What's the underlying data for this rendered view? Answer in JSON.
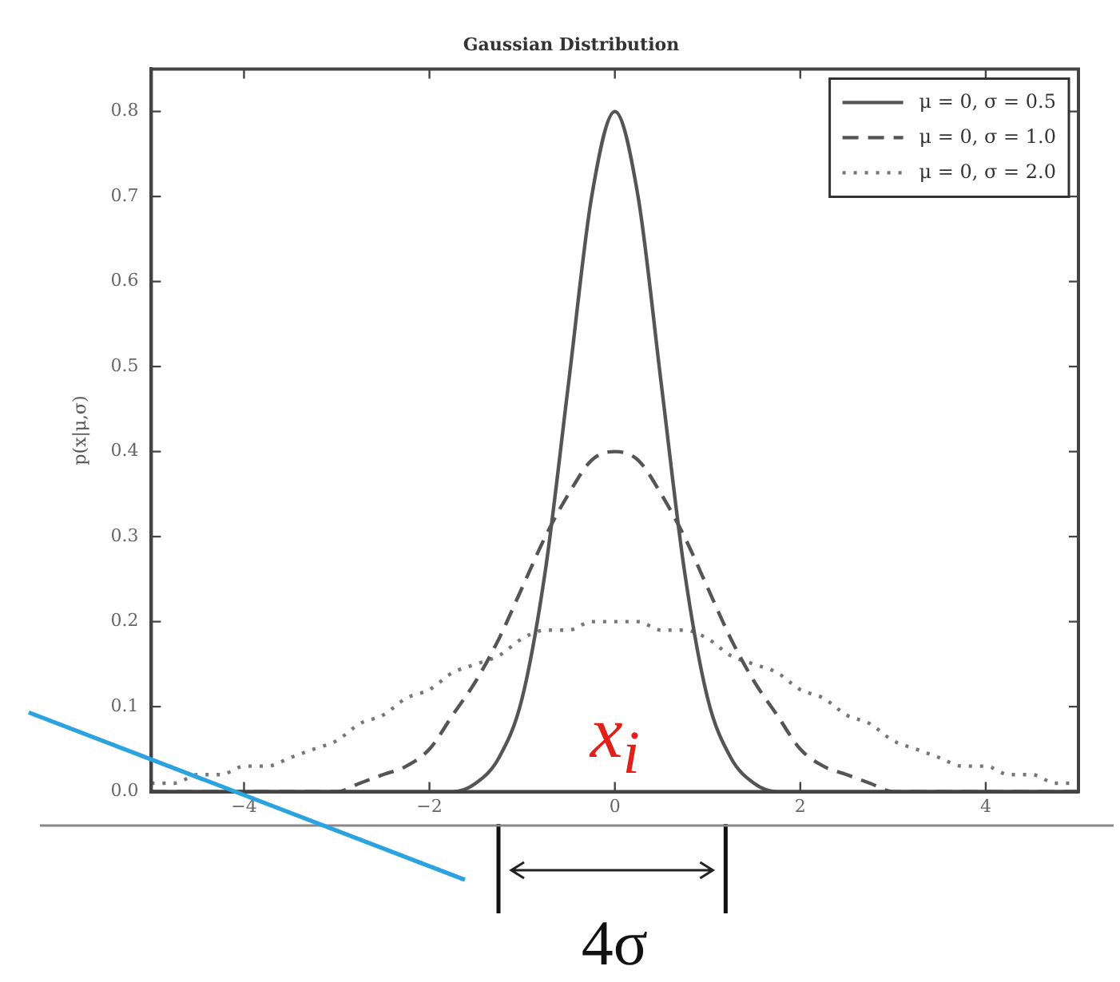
{
  "chart_data": {
    "type": "line",
    "title": "Gaussian Distribution",
    "ylabel": "p(x|μ,σ)",
    "x": [
      -5,
      -4.75,
      -4.5,
      -4.25,
      -4,
      -3.75,
      -3.5,
      -3.25,
      -3,
      -2.75,
      -2.5,
      -2.25,
      -2,
      -1.75,
      -1.5,
      -1.25,
      -1,
      -0.75,
      -0.5,
      -0.25,
      0,
      0.25,
      0.5,
      0.75,
      1,
      1.25,
      1.5,
      1.75,
      2,
      2.25,
      2.5,
      2.75,
      3,
      3.25,
      3.5,
      3.75,
      4,
      4.25,
      4.5,
      4.75,
      5
    ],
    "series": [
      {
        "name": "μ = 0, σ = 0.5",
        "color": "#555555",
        "line_style": "solid",
        "values": [
          0,
          0,
          0,
          0,
          0,
          0,
          0,
          0,
          0,
          0,
          0,
          0,
          0,
          0,
          0.01,
          0.04,
          0.11,
          0.26,
          0.48,
          0.7,
          0.8,
          0.7,
          0.48,
          0.26,
          0.11,
          0.04,
          0.01,
          0,
          0,
          0,
          0,
          0,
          0,
          0,
          0,
          0,
          0,
          0,
          0,
          0,
          0
        ]
      },
      {
        "name": "μ = 0, σ = 1.0",
        "color": "#555555",
        "line_style": "dashed",
        "values": [
          0,
          0,
          0,
          0,
          0,
          0,
          0,
          0,
          0,
          0.01,
          0.02,
          0.03,
          0.05,
          0.09,
          0.13,
          0.18,
          0.24,
          0.3,
          0.35,
          0.39,
          0.4,
          0.39,
          0.35,
          0.3,
          0.24,
          0.18,
          0.13,
          0.09,
          0.05,
          0.03,
          0.02,
          0.01,
          0,
          0,
          0,
          0,
          0,
          0,
          0,
          0,
          0
        ]
      },
      {
        "name": "μ = 0, σ = 2.0",
        "color": "#777777",
        "line_style": "dotted",
        "values": [
          0.01,
          0.01,
          0.02,
          0.02,
          0.03,
          0.03,
          0.04,
          0.05,
          0.06,
          0.08,
          0.09,
          0.11,
          0.12,
          0.14,
          0.15,
          0.16,
          0.18,
          0.19,
          0.19,
          0.2,
          0.2,
          0.2,
          0.19,
          0.19,
          0.18,
          0.16,
          0.15,
          0.14,
          0.12,
          0.11,
          0.09,
          0.08,
          0.06,
          0.05,
          0.04,
          0.03,
          0.03,
          0.02,
          0.02,
          0.01,
          0.01
        ]
      }
    ],
    "xlim": [
      -5,
      5
    ],
    "xticks": [
      {
        "value": -4,
        "label": "−4"
      },
      {
        "value": -2,
        "label": "−2"
      },
      0,
      2,
      4
    ],
    "ylim": [
      0,
      0.85
    ],
    "yticks": [
      {
        "value": 0,
        "label": "0.0"
      },
      0.1,
      0.2,
      0.3,
      0.4,
      0.5,
      0.6,
      0.7,
      0.8
    ],
    "grid": false,
    "legend": "top right",
    "marker": "none",
    "annotations": [
      "x$_{i}$",
      "4σ"
    ]
  }
}
